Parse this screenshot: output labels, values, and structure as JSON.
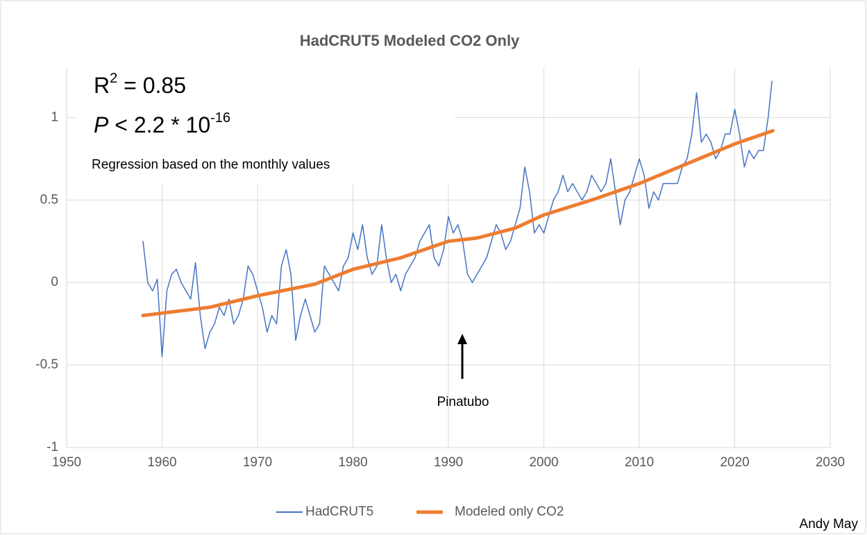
{
  "chart_data": {
    "type": "line",
    "title": "HadCRUT5 Modeled CO2 Only",
    "r_squared": {
      "base": "R",
      "sup": "2",
      "rest": " = 0.85"
    },
    "p_value": {
      "base": "P",
      "rest": " < 2.2 * 10",
      "sup": "-16"
    },
    "note": "Regression based on the monthly values",
    "annotation": "Pinatubo",
    "credit": "Andy May",
    "xlim": [
      1950,
      2030
    ],
    "xticks": [
      1950,
      1960,
      1970,
      1980,
      1990,
      2000,
      2010,
      2020,
      2030
    ],
    "ylim": [
      -1,
      1.3
    ],
    "yticks": [
      -1,
      -0.5,
      0,
      0.5,
      1
    ],
    "grid": true,
    "legend": "bottom",
    "series": [
      {
        "name": "HadCRUT5",
        "color": "#4472c4",
        "x": [
          1958,
          1958.5,
          1959,
          1959.5,
          1960,
          1960.5,
          1961,
          1961.5,
          1962,
          1962.5,
          1963,
          1963.5,
          1964,
          1964.5,
          1965,
          1965.5,
          1966,
          1966.5,
          1967,
          1967.5,
          1968,
          1968.5,
          1969,
          1969.5,
          1970,
          1970.5,
          1971,
          1971.5,
          1972,
          1972.5,
          1973,
          1973.5,
          1974,
          1974.5,
          1975,
          1975.5,
          1976,
          1976.5,
          1977,
          1977.5,
          1978,
          1978.5,
          1979,
          1979.5,
          1980,
          1980.5,
          1981,
          1981.5,
          1982,
          1982.5,
          1983,
          1983.5,
          1984,
          1984.5,
          1985,
          1985.5,
          1986,
          1986.5,
          1987,
          1987.5,
          1988,
          1988.5,
          1989,
          1989.5,
          1990,
          1990.5,
          1991,
          1991.5,
          1992,
          1992.5,
          1993,
          1993.5,
          1994,
          1994.5,
          1995,
          1995.5,
          1996,
          1996.5,
          1997,
          1997.5,
          1998,
          1998.5,
          1999,
          1999.5,
          2000,
          2000.5,
          2001,
          2001.5,
          2002,
          2002.5,
          2003,
          2003.5,
          2004,
          2004.5,
          2005,
          2005.5,
          2006,
          2006.5,
          2007,
          2007.5,
          2008,
          2008.5,
          2009,
          2009.5,
          2010,
          2010.5,
          2011,
          2011.5,
          2012,
          2012.5,
          2013,
          2013.5,
          2014,
          2014.5,
          2015,
          2015.5,
          2016,
          2016.5,
          2017,
          2017.5,
          2018,
          2018.5,
          2019,
          2019.5,
          2020,
          2020.5,
          2021,
          2021.5,
          2022,
          2022.5,
          2023,
          2023.5,
          2023.9
        ],
        "values": [
          0.25,
          0.0,
          -0.05,
          0.02,
          -0.45,
          -0.05,
          0.05,
          0.08,
          0.0,
          -0.05,
          -0.1,
          0.12,
          -0.2,
          -0.4,
          -0.3,
          -0.25,
          -0.15,
          -0.2,
          -0.1,
          -0.25,
          -0.2,
          -0.1,
          0.1,
          0.05,
          -0.05,
          -0.15,
          -0.3,
          -0.2,
          -0.25,
          0.1,
          0.2,
          0.05,
          -0.35,
          -0.2,
          -0.1,
          -0.2,
          -0.3,
          -0.25,
          0.1,
          0.05,
          0.0,
          -0.05,
          0.1,
          0.15,
          0.3,
          0.2,
          0.35,
          0.15,
          0.05,
          0.1,
          0.35,
          0.15,
          0.0,
          0.05,
          -0.05,
          0.05,
          0.1,
          0.15,
          0.25,
          0.3,
          0.35,
          0.15,
          0.1,
          0.2,
          0.4,
          0.3,
          0.35,
          0.25,
          0.05,
          0.0,
          0.05,
          0.1,
          0.15,
          0.25,
          0.35,
          0.3,
          0.2,
          0.25,
          0.35,
          0.45,
          0.7,
          0.55,
          0.3,
          0.35,
          0.3,
          0.4,
          0.5,
          0.55,
          0.65,
          0.55,
          0.6,
          0.55,
          0.5,
          0.55,
          0.65,
          0.6,
          0.55,
          0.6,
          0.75,
          0.55,
          0.35,
          0.5,
          0.55,
          0.65,
          0.75,
          0.65,
          0.45,
          0.55,
          0.5,
          0.6,
          0.6,
          0.6,
          0.6,
          0.7,
          0.75,
          0.9,
          1.15,
          0.85,
          0.9,
          0.85,
          0.75,
          0.8,
          0.9,
          0.9,
          1.05,
          0.9,
          0.7,
          0.8,
          0.75,
          0.8,
          0.8,
          1.0,
          1.22
        ]
      },
      {
        "name": "Modeled only CO2",
        "color": "#ed7d31",
        "x": [
          1958,
          1965,
          1970,
          1976,
          1980,
          1985,
          1990,
          1993,
          1997,
          2000,
          2005,
          2010,
          2015,
          2020,
          2024
        ],
        "values": [
          -0.2,
          -0.15,
          -0.08,
          -0.01,
          0.08,
          0.15,
          0.25,
          0.27,
          0.33,
          0.41,
          0.5,
          0.6,
          0.72,
          0.84,
          0.92
        ]
      }
    ]
  }
}
